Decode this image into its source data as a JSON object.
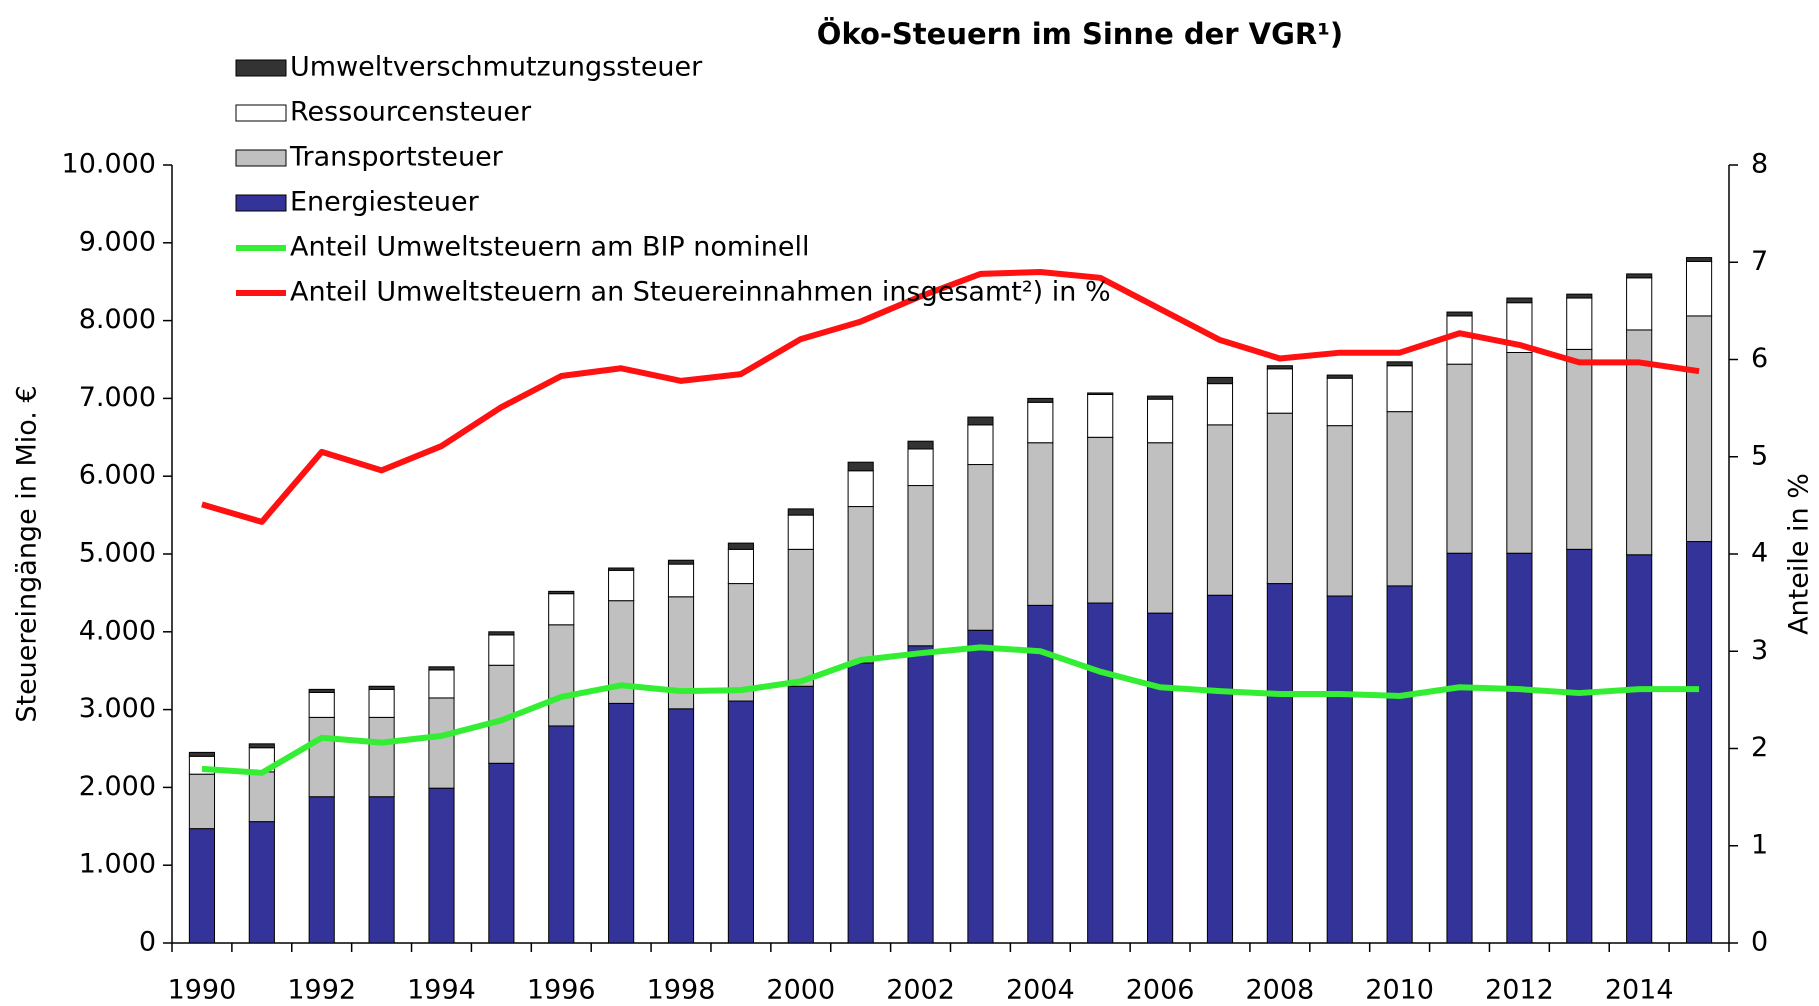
{
  "chart_data": {
    "type": "bar_line",
    "title": "Öko-Steuern im Sinne der VGR¹)",
    "y_label": "Steuereingänge in Mio. €",
    "y2_label": "Anteile in %",
    "categories": [
      "1990",
      null,
      "1992",
      null,
      "1994",
      null,
      "1996",
      null,
      "1998",
      null,
      "2000",
      null,
      "2002",
      null,
      "2004",
      null,
      "2006",
      null,
      "2008",
      null,
      "2010",
      null,
      "2012",
      null,
      "2014",
      null
    ],
    "series": [
      {
        "name": "Energiesteuer",
        "color": "#333399",
        "stacked": true,
        "values": [
          1470,
          1560,
          1880,
          1880,
          1990,
          2310,
          2790,
          3080,
          3010,
          3110,
          3300,
          3600,
          3820,
          4020,
          4340,
          4370,
          4240,
          4470,
          4620,
          4460,
          4590,
          5010,
          5010,
          5060,
          4990,
          5160
        ]
      },
      {
        "name": "Transportsteuer",
        "color": "#c0c0c0",
        "stacked": true,
        "values": [
          700,
          640,
          1020,
          1020,
          1160,
          1260,
          1300,
          1320,
          1440,
          1510,
          1760,
          2010,
          2060,
          2130,
          2090,
          2130,
          2190,
          2190,
          2190,
          2190,
          2240,
          2430,
          2580,
          2570,
          2890,
          2900
        ]
      },
      {
        "name": "Ressourcensteuer",
        "color": "#ffffff",
        "stacked": true,
        "values": [
          230,
          310,
          320,
          360,
          360,
          390,
          400,
          390,
          420,
          440,
          440,
          460,
          470,
          510,
          520,
          550,
          560,
          530,
          570,
          610,
          590,
          620,
          640,
          660,
          670,
          700
        ]
      },
      {
        "name": "Umweltverschmutzungssteuer",
        "color": "#333333",
        "stacked": true,
        "values": [
          50,
          50,
          40,
          40,
          40,
          40,
          30,
          30,
          50,
          80,
          80,
          110,
          100,
          100,
          50,
          20,
          40,
          80,
          40,
          40,
          50,
          50,
          60,
          50,
          50,
          50
        ]
      },
      {
        "name": "Anteil Umweltsteuern am BIP nominell",
        "color": "#33ee33",
        "axis": "y2",
        "values": [
          1.79,
          1.75,
          2.11,
          2.06,
          2.13,
          2.29,
          2.53,
          2.65,
          2.59,
          2.6,
          2.69,
          2.91,
          2.98,
          3.04,
          3.0,
          2.79,
          2.63,
          2.59,
          2.56,
          2.56,
          2.54,
          2.63,
          2.61,
          2.57,
          2.61,
          2.61
        ]
      },
      {
        "name": "Anteil Umweltsteuern an Steuereinnahmen insgesamt²) in %",
        "color": "#ff1111",
        "axis": "y2",
        "values": [
          4.51,
          4.33,
          5.05,
          4.86,
          5.11,
          5.51,
          5.83,
          5.91,
          5.78,
          5.85,
          6.21,
          6.39,
          6.65,
          6.88,
          6.9,
          6.84,
          6.52,
          6.2,
          6.01,
          6.07,
          6.07,
          6.27,
          6.15,
          5.97,
          5.97,
          5.88
        ]
      }
    ],
    "ylim": [
      0,
      10000
    ],
    "yticks": [
      0,
      {
        "value": 1000,
        "label": "1.000"
      },
      {
        "value": 2000,
        "label": "2.000"
      },
      {
        "value": 3000,
        "label": "3.000"
      },
      {
        "value": 4000,
        "label": "4.000"
      },
      {
        "value": 5000,
        "label": "5.000"
      },
      {
        "value": 6000,
        "label": "6.000"
      },
      {
        "value": 7000,
        "label": "7.000"
      },
      {
        "value": 8000,
        "label": "8.000"
      },
      {
        "value": 9000,
        "label": "9.000"
      },
      {
        "value": 10000,
        "label": "10.000"
      }
    ],
    "y2lim": [
      0,
      8
    ],
    "y2ticks": [
      0,
      1,
      2,
      3,
      4,
      5,
      6,
      7,
      8
    ],
    "grid": false,
    "legend": "top-left"
  }
}
